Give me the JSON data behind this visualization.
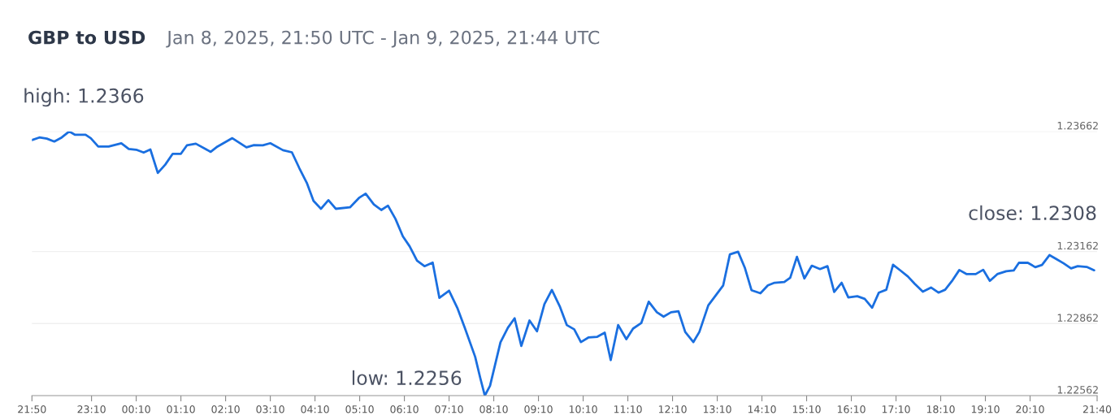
{
  "chart_data": {
    "type": "line",
    "title": "GBP to USD",
    "subtitle": "Jan 8, 2025, 21:50 UTC - Jan 9, 2025, 21:44 UTC",
    "x": [
      "2025-01-08T21:50",
      "2025-01-08T22:00",
      "2025-01-08T22:10",
      "2025-01-08T22:20",
      "2025-01-08T22:30",
      "2025-01-08T22:40",
      "2025-01-08T22:48",
      "2025-01-08T23:02",
      "2025-01-08T23:09",
      "2025-01-08T23:19",
      "2025-01-08T23:33",
      "2025-01-08T23:50",
      "2025-01-09T00:00",
      "2025-01-09T00:10",
      "2025-01-09T00:20",
      "2025-01-09T00:29",
      "2025-01-09T00:39",
      "2025-01-09T00:49",
      "2025-01-09T00:59",
      "2025-01-09T01:10",
      "2025-01-09T01:18",
      "2025-01-09T01:30",
      "2025-01-09T01:50",
      "2025-01-09T01:59",
      "2025-01-09T02:19",
      "2025-01-09T02:38",
      "2025-01-09T02:48",
      "2025-01-09T03:00",
      "2025-01-09T03:10",
      "2025-01-09T03:27",
      "2025-01-09T03:39",
      "2025-01-09T03:49",
      "2025-01-09T03:59",
      "2025-01-09T04:08",
      "2025-01-09T04:18",
      "2025-01-09T04:28",
      "2025-01-09T04:38",
      "2025-01-09T04:57",
      "2025-01-09T05:09",
      "2025-01-09T05:18",
      "2025-01-09T05:29",
      "2025-01-09T05:39",
      "2025-01-09T05:48",
      "2025-01-09T05:58",
      "2025-01-09T06:08",
      "2025-01-09T06:17",
      "2025-01-09T06:27",
      "2025-01-09T06:37",
      "2025-01-09T06:48",
      "2025-01-09T06:57",
      "2025-01-09T07:10",
      "2025-01-09T07:21",
      "2025-01-09T07:31",
      "2025-01-09T07:45",
      "2025-01-09T07:52",
      "2025-01-09T07:58",
      "2025-01-09T08:05",
      "2025-01-09T08:19",
      "2025-01-09T08:29",
      "2025-01-09T08:38",
      "2025-01-09T08:47",
      "2025-01-09T08:58",
      "2025-01-09T09:08",
      "2025-01-09T09:18",
      "2025-01-09T09:28",
      "2025-01-09T09:39",
      "2025-01-09T09:48",
      "2025-01-09T09:58",
      "2025-01-09T10:07",
      "2025-01-09T10:17",
      "2025-01-09T10:29",
      "2025-01-09T10:39",
      "2025-01-09T10:47",
      "2025-01-09T10:57",
      "2025-01-09T11:08",
      "2025-01-09T11:17",
      "2025-01-09T11:28",
      "2025-01-09T11:38",
      "2025-01-09T11:49",
      "2025-01-09T11:58",
      "2025-01-09T12:08",
      "2025-01-09T12:18",
      "2025-01-09T12:27",
      "2025-01-09T12:38",
      "2025-01-09T12:46",
      "2025-01-09T12:58",
      "2025-01-09T13:18",
      "2025-01-09T13:27",
      "2025-01-09T13:38",
      "2025-01-09T13:47",
      "2025-01-09T13:56",
      "2025-01-09T14:08",
      "2025-01-09T14:18",
      "2025-01-09T14:27",
      "2025-01-09T14:40",
      "2025-01-09T14:48",
      "2025-01-09T14:57",
      "2025-01-09T15:07",
      "2025-01-09T15:17",
      "2025-01-09T15:28",
      "2025-01-09T15:38",
      "2025-01-09T15:47",
      "2025-01-09T15:57",
      "2025-01-09T16:06",
      "2025-01-09T16:18",
      "2025-01-09T16:28",
      "2025-01-09T16:38",
      "2025-01-09T16:47",
      "2025-01-09T16:57",
      "2025-01-09T17:06",
      "2025-01-09T17:16",
      "2025-01-09T17:26",
      "2025-01-09T17:35",
      "2025-01-09T17:46",
      "2025-01-09T17:57",
      "2025-01-09T18:07",
      "2025-01-09T18:16",
      "2025-01-09T18:26",
      "2025-01-09T18:35",
      "2025-01-09T18:45",
      "2025-01-09T18:57",
      "2025-01-09T19:07",
      "2025-01-09T19:16",
      "2025-01-09T19:26",
      "2025-01-09T19:38",
      "2025-01-09T19:48",
      "2025-01-09T19:55",
      "2025-01-09T20:07",
      "2025-01-09T20:17",
      "2025-01-09T20:26",
      "2025-01-09T20:36",
      "2025-01-09T20:45",
      "2025-01-09T20:55",
      "2025-01-09T21:05",
      "2025-01-09T21:14",
      "2025-01-09T21:26",
      "2025-01-09T21:36"
    ],
    "series": [
      {
        "color": "#1a6fe0",
        "values": [
          1.23626,
          1.23637,
          1.23632,
          1.2362,
          1.23637,
          1.23662,
          1.23648,
          1.23648,
          1.23634,
          1.23599,
          1.23599,
          1.23613,
          1.23589,
          1.23586,
          1.23574,
          1.23587,
          1.23489,
          1.23524,
          1.23569,
          1.23569,
          1.23604,
          1.23611,
          1.23577,
          1.23599,
          1.23634,
          1.23596,
          1.23605,
          1.23604,
          1.23613,
          1.23584,
          1.23575,
          1.23509,
          1.23448,
          1.23373,
          1.2334,
          1.23376,
          1.2334,
          1.23346,
          1.23385,
          1.23403,
          1.23358,
          1.23335,
          1.23353,
          1.23298,
          1.23225,
          1.23184,
          1.23124,
          1.23101,
          1.23116,
          1.22969,
          1.22999,
          1.22928,
          1.22845,
          1.22724,
          1.22634,
          1.22562,
          1.22603,
          1.22784,
          1.22845,
          1.22884,
          1.22769,
          1.22875,
          1.2283,
          1.22943,
          1.23002,
          1.22931,
          1.22856,
          1.22838,
          1.22785,
          1.22804,
          1.22807,
          1.22824,
          1.2271,
          1.22856,
          1.22797,
          1.22841,
          1.22864,
          1.22953,
          1.22909,
          1.22891,
          1.22909,
          1.22913,
          1.22827,
          1.22785,
          1.22827,
          1.22938,
          1.23021,
          1.2315,
          1.23161,
          1.23095,
          1.23001,
          1.22988,
          1.23021,
          1.23032,
          1.23035,
          1.23053,
          1.2314,
          1.2305,
          1.23103,
          1.23089,
          1.23101,
          1.22994,
          1.23032,
          1.22971,
          1.22976,
          1.22965,
          1.22928,
          1.22991,
          1.23003,
          1.23107,
          1.23083,
          1.23058,
          1.23028,
          1.22995,
          1.23012,
          1.22991,
          1.23003,
          1.23043,
          1.23085,
          1.23068,
          1.23068,
          1.23086,
          1.2304,
          1.23068,
          1.2308,
          1.23083,
          1.23115,
          1.23115,
          1.23097,
          1.23106,
          1.23147,
          1.23131,
          1.23113,
          1.23092,
          1.23101,
          1.23098,
          1.23084
        ]
      }
    ],
    "xlim": [
      "2025-01-08T21:50",
      "2025-01-09T21:40"
    ],
    "xticks": [
      {
        "value": "2025-01-08T21:50",
        "label": "21:50"
      },
      {
        "value": "2025-01-08T23:10",
        "label": "23:10"
      },
      {
        "value": "2025-01-09T00:10",
        "label": "00:10"
      },
      {
        "value": "2025-01-09T01:10",
        "label": "01:10"
      },
      {
        "value": "2025-01-09T02:10",
        "label": "02:10"
      },
      {
        "value": "2025-01-09T03:10",
        "label": "03:10"
      },
      {
        "value": "2025-01-09T04:10",
        "label": "04:10"
      },
      {
        "value": "2025-01-09T05:10",
        "label": "05:10"
      },
      {
        "value": "2025-01-09T06:10",
        "label": "06:10"
      },
      {
        "value": "2025-01-09T07:10",
        "label": "07:10"
      },
      {
        "value": "2025-01-09T08:10",
        "label": "08:10"
      },
      {
        "value": "2025-01-09T09:10",
        "label": "09:10"
      },
      {
        "value": "2025-01-09T10:10",
        "label": "10:10"
      },
      {
        "value": "2025-01-09T11:10",
        "label": "11:10"
      },
      {
        "value": "2025-01-09T12:10",
        "label": "12:10"
      },
      {
        "value": "2025-01-09T13:10",
        "label": "13:10"
      },
      {
        "value": "2025-01-09T14:10",
        "label": "14:10"
      },
      {
        "value": "2025-01-09T15:10",
        "label": "15:10"
      },
      {
        "value": "2025-01-09T16:10",
        "label": "16:10"
      },
      {
        "value": "2025-01-09T17:10",
        "label": "17:10"
      },
      {
        "value": "2025-01-09T18:10",
        "label": "18:10"
      },
      {
        "value": "2025-01-09T19:10",
        "label": "19:10"
      },
      {
        "value": "2025-01-09T20:10",
        "label": "20:10"
      },
      {
        "value": "2025-01-09T21:40",
        "label": "21:40"
      }
    ],
    "ylim": [
      1.22562,
      1.23662
    ],
    "yticks": [
      1.22562,
      1.22862,
      1.23162,
      1.23662
    ],
    "grid": "y",
    "annotations": [
      {
        "text": "high: 1.2366",
        "x": "2025-01-08T22:40",
        "y": 1.23662
      },
      {
        "text": "low: 1.2256",
        "x": "2025-01-09T07:58",
        "y": 1.22562
      },
      "close: 1.2308"
    ]
  }
}
